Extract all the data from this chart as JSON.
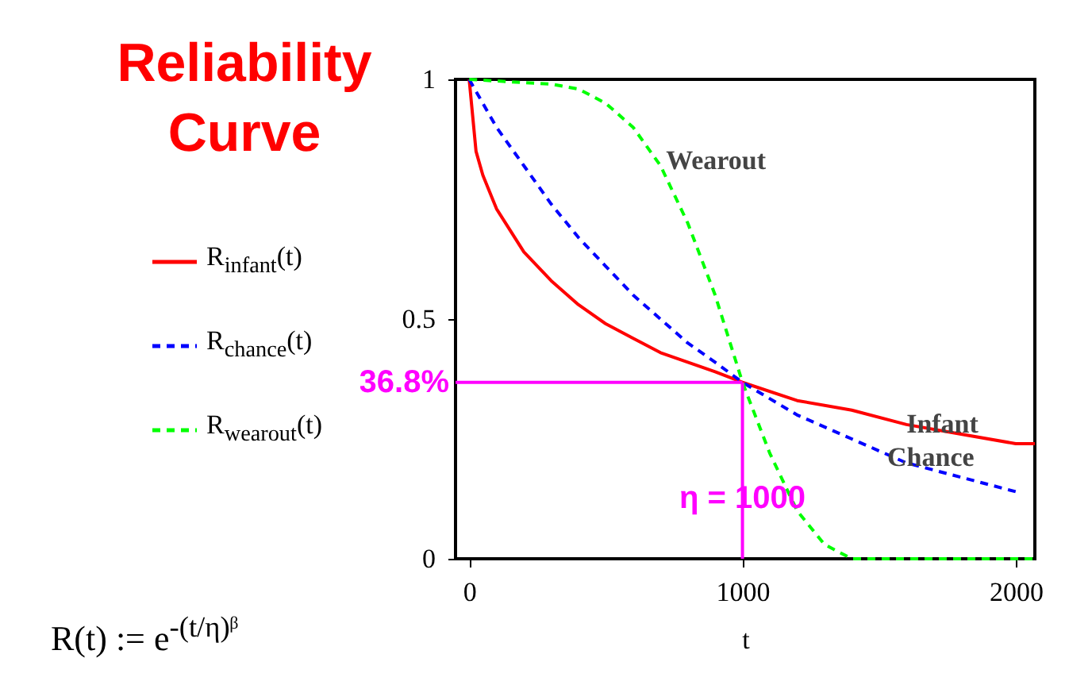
{
  "chart_data": {
    "type": "line",
    "title": "Reliability Curve",
    "xlabel": "t",
    "xlim": [
      -50,
      2070
    ],
    "xticks": [
      0,
      1000,
      2000
    ],
    "ylim": [
      0,
      1
    ],
    "yticks": [
      0,
      0.5,
      1
    ],
    "grid": false,
    "legend": "left",
    "marker": "none",
    "series": [
      {
        "name": "R$_{infant}$(t)",
        "color": "#ff0000",
        "line_style": "solid",
        "x": [
          0,
          25,
          50,
          100,
          200,
          300,
          400,
          500,
          600,
          700,
          800,
          900,
          1000,
          1200,
          1400,
          1600,
          1800,
          2000,
          2070
        ],
        "values": [
          1,
          0.85,
          0.8,
          0.73,
          0.64,
          0.58,
          0.53,
          0.49,
          0.46,
          0.43,
          0.41,
          0.39,
          0.368,
          0.33,
          0.31,
          0.28,
          0.26,
          0.24,
          0.24
        ]
      },
      {
        "name": "R$_{chance}$(t)",
        "color": "#0000ff",
        "line_style": "dashed",
        "x": [
          0,
          100,
          200,
          300,
          400,
          500,
          600,
          700,
          800,
          900,
          1000,
          1200,
          1400,
          1600,
          1800,
          2000
        ],
        "values": [
          1,
          0.9,
          0.82,
          0.74,
          0.67,
          0.61,
          0.55,
          0.5,
          0.45,
          0.41,
          0.368,
          0.3,
          0.25,
          0.2,
          0.17,
          0.14
        ]
      },
      {
        "name": "R$_{wearout}$(t)",
        "color": "#00ff00",
        "line_style": "dashed",
        "x": [
          0,
          300,
          400,
          500,
          600,
          700,
          800,
          900,
          1000,
          1100,
          1200,
          1300,
          1400,
          1600,
          1800,
          2000,
          2070
        ],
        "values": [
          1,
          0.99,
          0.98,
          0.95,
          0.9,
          0.82,
          0.7,
          0.55,
          0.368,
          0.22,
          0.1,
          0.03,
          0,
          0,
          0,
          0,
          0
        ]
      }
    ],
    "ref_lines": [
      {
        "axis": "y",
        "value": 0.368,
        "label": "36.8%",
        "color": "#ff00ff"
      },
      {
        "axis": "x",
        "value": 1000,
        "label": "η = 1000",
        "color": "#ff00ff"
      }
    ],
    "annotations": [
      {
        "text": "Wearout",
        "x": 720,
        "y": 0.83
      },
      {
        "text": "Infant",
        "x": 1600,
        "y": 0.28
      },
      {
        "text": "Chance",
        "x": 1530,
        "y": 0.21
      },
      "R(t) := e$^{-(t/η)ᵝ}$"
    ]
  }
}
